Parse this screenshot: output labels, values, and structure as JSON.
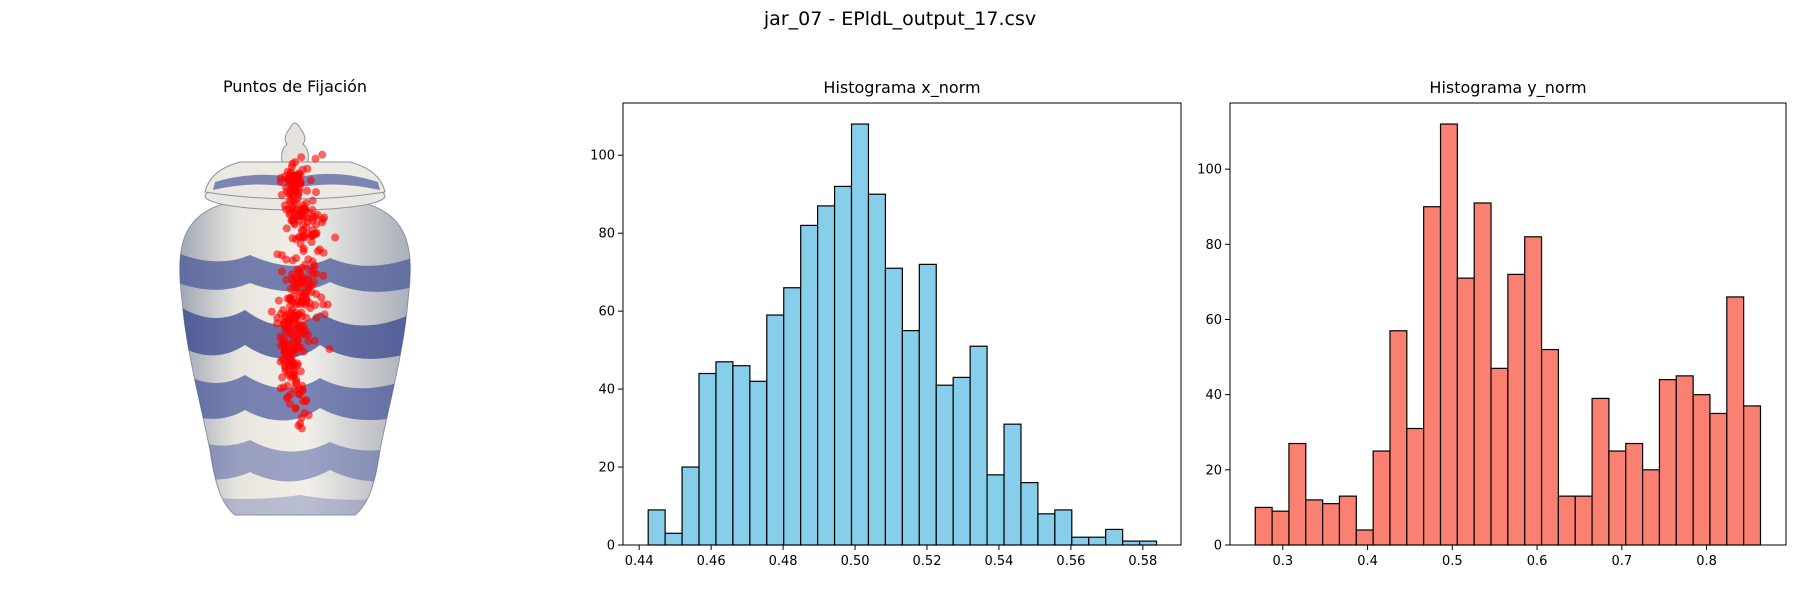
{
  "figure": {
    "suptitle": "jar_07 - EPldL_output_17.csv"
  },
  "image_panel": {
    "title": "Puntos de Fijación",
    "subject_icon": "ginger-jar",
    "fixation_color": "#ff0000"
  },
  "chart_data": [
    {
      "type": "bar",
      "title": "Histograma x_norm",
      "xlabel": "",
      "ylabel": "",
      "bar_color": "#87ceeb",
      "edge_color": "#000000",
      "bin_start": 0.4425,
      "bin_width": 0.00471,
      "values": [
        9,
        3,
        20,
        44,
        47,
        46,
        42,
        59,
        66,
        82,
        87,
        92,
        108,
        90,
        71,
        55,
        72,
        41,
        43,
        51,
        18,
        31,
        16,
        8,
        9,
        2,
        2,
        4,
        1,
        1
      ],
      "xlim": [
        0.4355,
        0.5906
      ],
      "ylim": [
        0,
        113.4
      ],
      "xticks": [
        0.44,
        0.46,
        0.48,
        0.5,
        0.52,
        0.54,
        0.56,
        0.58
      ],
      "xtick_labels": [
        "0.44",
        "0.46",
        "0.48",
        "0.50",
        "0.52",
        "0.54",
        "0.56",
        "0.58"
      ],
      "yticks": [
        0,
        20,
        40,
        60,
        80,
        100
      ],
      "ytick_labels": [
        "0",
        "20",
        "40",
        "60",
        "80",
        "100"
      ],
      "grid": false
    },
    {
      "type": "bar",
      "title": "Histograma y_norm",
      "xlabel": "",
      "ylabel": "",
      "bar_color": "#fa8072",
      "edge_color": "#000000",
      "bin_start": 0.2675,
      "bin_width": 0.01987,
      "values": [
        10,
        9,
        27,
        12,
        11,
        13,
        4,
        25,
        57,
        31,
        90,
        112,
        71,
        91,
        47,
        72,
        82,
        52,
        13,
        13,
        39,
        25,
        27,
        20,
        44,
        45,
        40,
        35,
        66,
        37
      ],
      "xlim": [
        0.2377,
        0.8937
      ],
      "ylim": [
        0,
        117.6
      ],
      "xticks": [
        0.3,
        0.4,
        0.5,
        0.6,
        0.7,
        0.8
      ],
      "xtick_labels": [
        "0.3",
        "0.4",
        "0.5",
        "0.6",
        "0.7",
        "0.8"
      ],
      "yticks": [
        0,
        20,
        40,
        60,
        80,
        100
      ],
      "ytick_labels": [
        "0",
        "20",
        "40",
        "60",
        "80",
        "100"
      ],
      "grid": false
    }
  ]
}
